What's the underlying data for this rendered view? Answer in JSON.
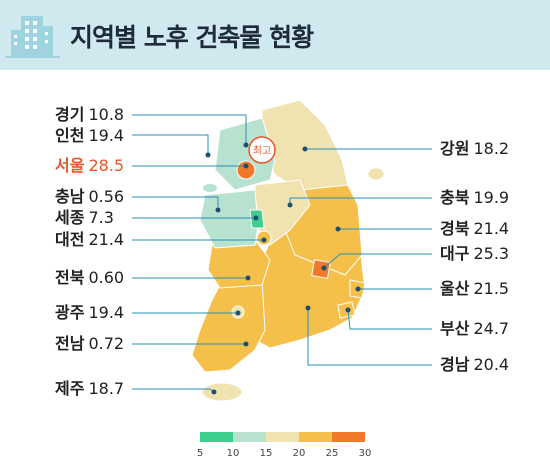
{
  "title": "지역별 노후 건축물 현황",
  "highlight_badge": "최고",
  "regions": [
    {
      "key": "gyeonggi",
      "name": "경기",
      "value": "10.8"
    },
    {
      "key": "incheon",
      "name": "인천",
      "value": "19.4"
    },
    {
      "key": "seoul",
      "name": "서울",
      "value": "28.5",
      "highlight": true
    },
    {
      "key": "chungnam",
      "name": "충남",
      "value": "0.56"
    },
    {
      "key": "sejong",
      "name": "세종",
      "value": "7.3"
    },
    {
      "key": "daejeon",
      "name": "대전",
      "value": "21.4"
    },
    {
      "key": "jeonbuk",
      "name": "전북",
      "value": "0.60"
    },
    {
      "key": "gwangju",
      "name": "광주",
      "value": "19.4"
    },
    {
      "key": "jeonnam",
      "name": "전남",
      "value": "0.72"
    },
    {
      "key": "jeju",
      "name": "제주",
      "value": "18.7"
    },
    {
      "key": "gangwon",
      "name": "강원",
      "value": "18.2"
    },
    {
      "key": "chungbuk",
      "name": "충북",
      "value": "19.9"
    },
    {
      "key": "gyeongbuk",
      "name": "경북",
      "value": "21.4"
    },
    {
      "key": "daegu",
      "name": "대구",
      "value": "25.3"
    },
    {
      "key": "ulsan",
      "name": "울산",
      "value": "21.5"
    },
    {
      "key": "busan",
      "name": "부산",
      "value": "24.7"
    },
    {
      "key": "gyeongnam",
      "name": "경남",
      "value": "20.4"
    }
  ],
  "legend": {
    "ticks": [
      "5",
      "10",
      "15",
      "20",
      "25",
      "30"
    ],
    "colors": [
      "#3fcf8c",
      "#b8e2d0",
      "#f1e3b0",
      "#f5c04a",
      "#f07a2a"
    ]
  },
  "colors": {
    "header_bg": "#cfe9ef",
    "highlight": "#e8562a",
    "leader_line": "#2b8fb6"
  }
}
